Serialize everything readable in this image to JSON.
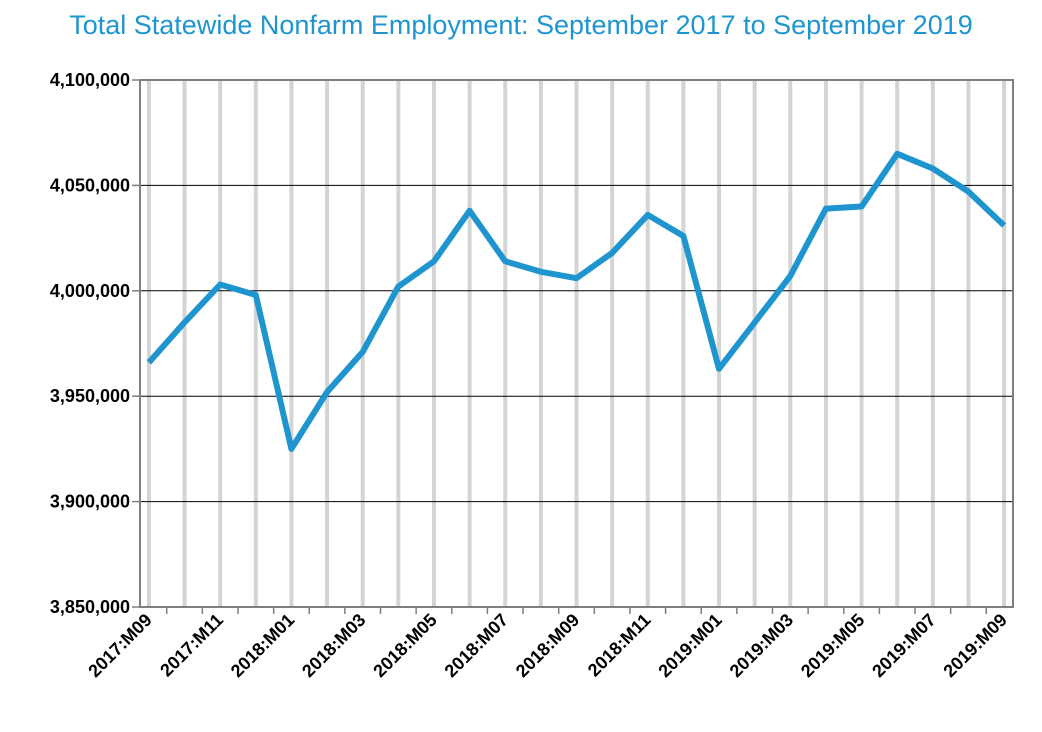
{
  "chart_data": {
    "type": "line",
    "title": "Total Statewide Nonfarm Employment:  September 2017 to September 2019",
    "xlabel": "",
    "ylabel": "",
    "ylim": [
      3850000,
      4100000
    ],
    "yticks": [
      3850000,
      3900000,
      3950000,
      4000000,
      4050000,
      4100000
    ],
    "ytick_labels": [
      "3,850,000",
      "3,900,000",
      "3,950,000",
      "4,000,000",
      "4,050,000",
      "4,100,000"
    ],
    "categories": [
      "2017:M09",
      "2017:M10",
      "2017:M11",
      "2017:M12",
      "2018:M01",
      "2018:M02",
      "2018:M03",
      "2018:M04",
      "2018:M05",
      "2018:M06",
      "2018:M07",
      "2018:M08",
      "2018:M09",
      "2018:M10",
      "2018:M11",
      "2018:M12",
      "2019:M01",
      "2019:M02",
      "2019:M03",
      "2019:M04",
      "2019:M05",
      "2019:M06",
      "2019:M07",
      "2019:M08",
      "2019:M09"
    ],
    "x_tick_labels": [
      "2017:M09",
      "2017:M11",
      "2018:M01",
      "2018:M03",
      "2018:M05",
      "2018:M07",
      "2018:M09",
      "2018:M11",
      "2019:M01",
      "2019:M03",
      "2019:M05",
      "2019:M07",
      "2019:M09"
    ],
    "series": [
      {
        "values": [
          3966000,
          3985000,
          4003000,
          3998000,
          3925000,
          3952000,
          3971000,
          4002000,
          4014000,
          4038000,
          4014000,
          4009000,
          4006000,
          4018000,
          4036000,
          4026000,
          3963000,
          3985000,
          4007000,
          4039000,
          4040000,
          4065000,
          4058000,
          4047000,
          4031000
        ]
      }
    ],
    "grid": {
      "horizontal": true,
      "vertical": true
    },
    "legend": "none",
    "colors": {
      "line": "#1f95cf",
      "title": "#1f95cf",
      "vgrid": "#d4d4d4",
      "hgrid": "#000000",
      "axis": "#7f7f7f"
    }
  }
}
